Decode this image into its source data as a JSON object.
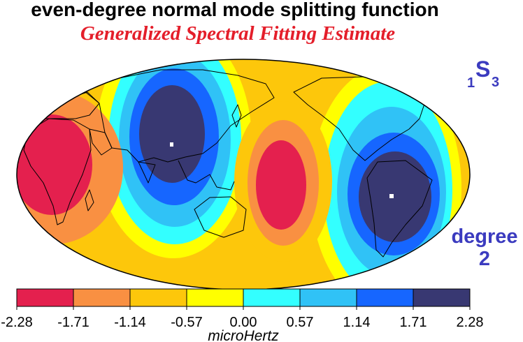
{
  "title": "even-degree normal mode splitting function",
  "subtitle": "Generalized Spectral Fitting Estimate",
  "mode": {
    "overtone": "1",
    "letter": "S",
    "degree_index": "3"
  },
  "degree_label": {
    "word": "degree",
    "value": "2"
  },
  "colorbar": {
    "unit": "microHertz",
    "ticks": [
      "-2.28",
      "-1.71",
      "-1.14",
      "-0.57",
      "0.00",
      "0.57",
      "1.14",
      "1.71",
      "2.28"
    ],
    "colors": [
      "#e4204e",
      "#f99042",
      "#fdc70b",
      "#ffff00",
      "#33ffff",
      "#30c2f6",
      "#1666ff",
      "#383872"
    ]
  },
  "map": {
    "projection": "hammer-ellipse",
    "field_extremes": [
      {
        "sign": "negative",
        "region": "Africa"
      },
      {
        "sign": "negative",
        "region": "Central Pacific"
      },
      {
        "sign": "positive",
        "region": "Asia / Western Pacific"
      },
      {
        "sign": "positive",
        "region": "South America"
      }
    ]
  }
}
